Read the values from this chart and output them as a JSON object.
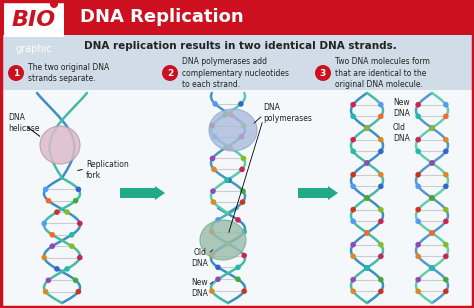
{
  "title": "DNA Replication",
  "subtitle": "DNA replication results in two identical DNA strands.",
  "bg_color": "#ffffff",
  "header_red": "#cc1020",
  "header_blue_light": "#d0dce8",
  "header_blue_mid": "#b8ccd8",
  "step1_title": "The two original DNA\nstrands separate.",
  "step2_title": "DNA polymerases add\ncomplementary nucleotides\nto each strand.",
  "step3_title": "Two DNA molecules form\nthat are identical to the\noriginal DNA molecule.",
  "label_helicase": "DNA\nhelicase",
  "label_fork": "Replication\nfork",
  "label_polymerases": "DNA\npolymerases",
  "label_old_dna": "Old\nDNA",
  "label_new_dna": "New\nDNA",
  "label_new_dna3": "New\nDNA",
  "label_old_dna3": "Old\nDNA",
  "arrow_color": "#22aa88",
  "step_circle_color": "#cc1020",
  "border_color": "#cc1020",
  "bio_white": "#ffffff",
  "dna_blue1": "#3a8fbc",
  "dna_teal1": "#4abba8",
  "dna_blue2": "#5aabcc",
  "dna_teal2": "#6acca8",
  "helicase_color": "#ccaabb",
  "poly_color1": "#aabbcc",
  "poly_color2": "#99bbaa",
  "dot_colors": [
    "#cc3322",
    "#44aa33",
    "#3366cc",
    "#dd8822",
    "#9944bb",
    "#22bbaa",
    "#cc2255",
    "#88bb22",
    "#ff6622",
    "#5599ff"
  ]
}
